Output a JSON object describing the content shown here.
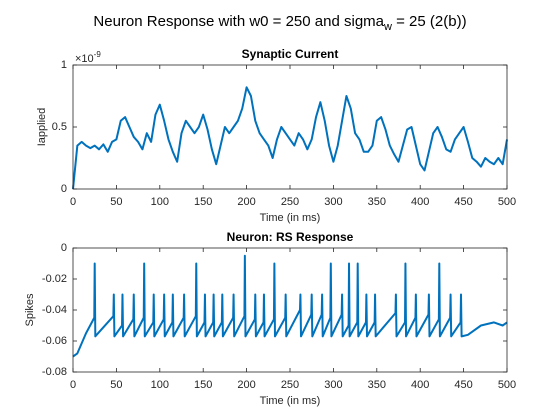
{
  "title": [
    "Neuron Response with w0 = 250 and sigma",
    "w",
    " = 25 (2(b))"
  ],
  "chart_data": [
    {
      "type": "line",
      "title": "Synaptic Current",
      "xlabel": "Time (in ms)",
      "ylabel": "Iapplied",
      "yexponent": {
        "base": "×10",
        "power": "-9"
      },
      "xlim": [
        0,
        500
      ],
      "xticks": [
        0,
        50,
        100,
        150,
        200,
        250,
        300,
        350,
        400,
        450,
        500
      ],
      "ylim": [
        0,
        1e-09
      ],
      "yticks": [
        0,
        {
          "value": 5e-10,
          "label": "0.5"
        },
        {
          "value": 1e-09,
          "label": "1"
        }
      ],
      "series": [
        {
          "color": "#0072bd",
          "x": [
            0,
            5,
            10,
            15,
            20,
            25,
            30,
            35,
            40,
            45,
            50,
            55,
            60,
            65,
            70,
            75,
            80,
            85,
            90,
            95,
            100,
            105,
            110,
            115,
            120,
            125,
            130,
            135,
            140,
            145,
            150,
            155,
            160,
            165,
            170,
            175,
            180,
            185,
            190,
            195,
            200,
            205,
            210,
            215,
            220,
            225,
            230,
            235,
            240,
            245,
            250,
            255,
            260,
            265,
            270,
            275,
            280,
            285,
            290,
            295,
            300,
            305,
            310,
            315,
            320,
            325,
            330,
            335,
            340,
            345,
            350,
            355,
            360,
            365,
            370,
            375,
            380,
            385,
            390,
            395,
            400,
            405,
            410,
            415,
            420,
            425,
            430,
            435,
            440,
            445,
            450,
            455,
            460,
            465,
            470,
            475,
            480,
            485,
            490,
            495,
            500
          ],
          "values": [
            0,
            3.5e-10,
            3.8e-10,
            3.5e-10,
            3.3e-10,
            3.5e-10,
            3.2e-10,
            3.6e-10,
            3e-10,
            3.8e-10,
            4e-10,
            5.5e-10,
            5.8e-10,
            5e-10,
            4.2e-10,
            3.8e-10,
            3.2e-10,
            4.5e-10,
            3.8e-10,
            6e-10,
            6.8e-10,
            5.5e-10,
            4e-10,
            3e-10,
            2.2e-10,
            4.5e-10,
            5.5e-10,
            5e-10,
            4.5e-10,
            5e-10,
            6e-10,
            4.8e-10,
            3.2e-10,
            2e-10,
            3.5e-10,
            5e-10,
            4.5e-10,
            5e-10,
            5.5e-10,
            6.5e-10,
            8.2e-10,
            7.5e-10,
            5.5e-10,
            4.5e-10,
            4e-10,
            3.5e-10,
            2.5e-10,
            4e-10,
            5e-10,
            4.5e-10,
            4e-10,
            3.5e-10,
            4.5e-10,
            4e-10,
            3.2e-10,
            4e-10,
            5.8e-10,
            7e-10,
            5.5e-10,
            3.5e-10,
            2.2e-10,
            3.5e-10,
            5.5e-10,
            7.5e-10,
            6.5e-10,
            4.5e-10,
            4e-10,
            3e-10,
            3e-10,
            3.5e-10,
            5.5e-10,
            5.8e-10,
            4.8e-10,
            3.5e-10,
            2.8e-10,
            2.2e-10,
            3.5e-10,
            4.8e-10,
            5e-10,
            3.5e-10,
            2e-10,
            1.5e-10,
            3e-10,
            4.5e-10,
            5e-10,
            4.2e-10,
            3.2e-10,
            3e-10,
            4e-10,
            4.5e-10,
            5e-10,
            3.8e-10,
            2.5e-10,
            2.2e-10,
            1.8e-10,
            2.5e-10,
            2.2e-10,
            2e-10,
            2.5e-10,
            2e-10,
            4e-10
          ]
        }
      ]
    },
    {
      "type": "line",
      "title": "Neuron: RS Response",
      "xlabel": "Time (in ms)",
      "ylabel": "Spikes",
      "xlim": [
        0,
        500
      ],
      "xticks": [
        0,
        50,
        100,
        150,
        200,
        250,
        300,
        350,
        400,
        450,
        500
      ],
      "ylim": [
        -0.08,
        0
      ],
      "yticks": [
        -0.08,
        -0.06,
        -0.04,
        -0.02,
        0
      ],
      "series": [
        {
          "color": "#0072bd",
          "x": [
            0,
            5,
            15,
            24.5,
            25,
            25.7,
            46.5,
            47,
            47.7,
            56.5,
            57,
            57.7,
            69.5,
            70,
            70.7,
            81.5,
            82,
            82.7,
            92.5,
            93,
            93.7,
            104.5,
            105,
            105.7,
            114.5,
            115,
            115.7,
            127.5,
            128,
            128.7,
            141.5,
            142,
            142.7,
            151.5,
            152,
            152.7,
            161.5,
            162,
            162.7,
            171.5,
            172,
            172.7,
            184.5,
            185,
            185.7,
            197.5,
            198,
            198.7,
            209.5,
            210,
            210.7,
            219.5,
            220,
            220.7,
            231.5,
            232,
            232.7,
            244.5,
            245,
            245.7,
            261.5,
            262,
            262.7,
            274.5,
            275,
            275.7,
            286.5,
            287,
            287.7,
            296.5,
            297,
            297.7,
            309.5,
            310,
            310.7,
            317.5,
            318,
            318.7,
            327.5,
            328,
            328.7,
            337.5,
            338,
            338.7,
            347.5,
            348,
            348.7,
            371.5,
            372,
            372.7,
            382.5,
            383,
            383.7,
            394.5,
            395,
            395.7,
            409.5,
            410,
            410.7,
            421.5,
            422,
            422.7,
            434.5,
            435,
            435.7,
            446.5,
            447,
            447.7,
            455,
            470,
            485,
            495,
            500
          ],
          "values": [
            -0.07,
            -0.068,
            -0.055,
            -0.045,
            -0.01,
            -0.057,
            -0.044,
            -0.03,
            -0.057,
            -0.05,
            -0.03,
            -0.057,
            -0.046,
            -0.03,
            -0.057,
            -0.045,
            -0.01,
            -0.057,
            -0.048,
            -0.03,
            -0.057,
            -0.046,
            -0.03,
            -0.057,
            -0.048,
            -0.03,
            -0.057,
            -0.045,
            -0.03,
            -0.057,
            -0.044,
            -0.01,
            -0.057,
            -0.048,
            -0.03,
            -0.057,
            -0.048,
            -0.03,
            -0.057,
            -0.048,
            -0.03,
            -0.057,
            -0.045,
            -0.03,
            -0.057,
            -0.044,
            -0.005,
            -0.057,
            -0.046,
            -0.03,
            -0.057,
            -0.048,
            -0.03,
            -0.057,
            -0.046,
            -0.01,
            -0.057,
            -0.045,
            -0.03,
            -0.057,
            -0.04,
            -0.03,
            -0.057,
            -0.043,
            -0.03,
            -0.057,
            -0.043,
            -0.03,
            -0.057,
            -0.045,
            -0.01,
            -0.057,
            -0.043,
            -0.03,
            -0.057,
            -0.05,
            -0.01,
            -0.057,
            -0.048,
            -0.01,
            -0.057,
            -0.048,
            -0.03,
            -0.057,
            -0.048,
            -0.03,
            -0.057,
            -0.042,
            -0.03,
            -0.057,
            -0.048,
            -0.01,
            -0.057,
            -0.045,
            -0.03,
            -0.057,
            -0.043,
            -0.03,
            -0.057,
            -0.046,
            -0.01,
            -0.057,
            -0.045,
            -0.03,
            -0.057,
            -0.048,
            -0.03,
            -0.057,
            -0.056,
            -0.05,
            -0.048,
            -0.05,
            -0.048
          ]
        }
      ]
    }
  ]
}
